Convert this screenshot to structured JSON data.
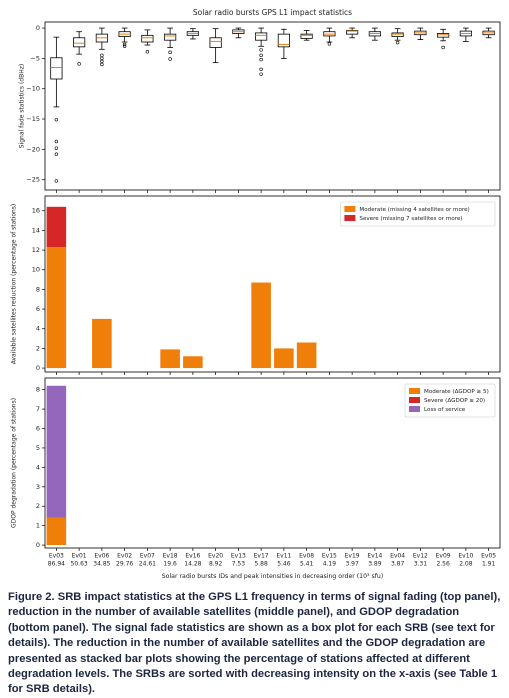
{
  "chart_data": [
    {
      "type": "box",
      "title": "Solar radio bursts GPS L1 impact statistics",
      "ylabel": "Signal fade statistics (dBHz)",
      "ylim": [
        -26.7,
        1
      ],
      "yticks": [
        0,
        {
          "value": -5,
          "label": "−5"
        },
        {
          "value": -10,
          "label": "−10"
        },
        {
          "value": -15,
          "label": "−15"
        },
        {
          "value": -20,
          "label": "−20"
        },
        {
          "value": -25,
          "label": "−25"
        }
      ],
      "color": "#000000",
      "median_color": "#f07f0a",
      "whisker_high": [
        -1.5,
        -0.6,
        0,
        0,
        -0.3,
        0,
        -0.1,
        -0.1,
        0,
        0,
        -0.2,
        -0.4,
        0,
        0,
        0,
        -0.1,
        0,
        -0.2,
        0,
        0
      ],
      "q3": [
        -4.9,
        -1.6,
        -1,
        -0.6,
        -1.2,
        -1,
        -0.6,
        -1.6,
        -0.3,
        -0.8,
        -1,
        -1,
        -0.6,
        -0.4,
        -0.6,
        -0.8,
        -0.5,
        -0.9,
        -0.5,
        -0.5
      ],
      "median": [
        -6.5,
        -2.5,
        -1.6,
        -1,
        -1.6,
        -1.3,
        -0.9,
        -2.2,
        -0.6,
        -1.2,
        -2.7,
        -1.2,
        -1,
        -0.5,
        -0.9,
        -1,
        -0.8,
        -1.1,
        -0.9,
        -0.8
      ],
      "q1": [
        -8.4,
        -3.1,
        -2.3,
        -1.4,
        -2.3,
        -2,
        -1.2,
        -3.2,
        -0.9,
        -2,
        -3.1,
        -1.7,
        -1.3,
        -1,
        -1.3,
        -1.4,
        -1.1,
        -1.5,
        -1.3,
        -1.1
      ],
      "whisker_low": [
        -13,
        -4.3,
        -3.5,
        -2.3,
        -2.8,
        -3.2,
        -1.8,
        -5.7,
        -1.6,
        -3,
        -5,
        -2,
        -2.3,
        -1.6,
        -2,
        -2,
        -1.9,
        -2.1,
        -2.2,
        -1.6
      ],
      "fliers": [
        [
          -15.1,
          -18.7,
          -19.8,
          -20.8,
          -25.2
        ],
        [
          -5.9
        ],
        [
          -4.5,
          -5,
          -5.5,
          -6
        ],
        [
          -2.7,
          -3
        ],
        [
          -3.9
        ],
        [
          -4,
          -5.1
        ],
        [],
        [],
        [],
        [
          -3.6,
          -4.5,
          -5.2,
          -6.8,
          -7.6
        ],
        [],
        [],
        [
          -2.6
        ],
        [],
        [],
        [
          -2.4
        ],
        [],
        [
          -3.2
        ],
        [],
        []
      ]
    },
    {
      "type": "bar",
      "stacked": true,
      "ylabel": "Available satellites reduction (percentage of stations)",
      "ylim": [
        -0.4,
        17.5
      ],
      "yticks": [
        0,
        2,
        4,
        6,
        8,
        10,
        12,
        14,
        16
      ],
      "legend": "upper right",
      "series": [
        {
          "name": "Moderate (missing 4 satellites or more)",
          "color": "#f07f0a",
          "values": [
            12.3,
            0,
            5.0,
            0,
            0,
            1.9,
            1.2,
            0,
            0,
            8.7,
            2.0,
            2.6,
            0,
            0,
            0,
            0,
            0,
            0,
            0,
            0
          ]
        },
        {
          "name": "Severe (missing 7 satellites or more)",
          "color": "#d62728",
          "values": [
            4.1,
            0,
            0,
            0,
            0,
            0,
            0,
            0,
            0,
            0,
            0,
            0,
            0,
            0,
            0,
            0,
            0,
            0,
            0,
            0
          ]
        }
      ]
    },
    {
      "type": "bar",
      "stacked": true,
      "ylabel": "GDOP degradation (percentage of stations)",
      "ylim": [
        -0.15,
        8.6
      ],
      "yticks": [
        0,
        1,
        2,
        3,
        4,
        5,
        6,
        7,
        8
      ],
      "legend": "upper right",
      "xlabel": "Solar radio bursts IDs and peak intensities in decreasing order (10³ sfu)",
      "categories": [
        "Ev03",
        "Ev01",
        "Ev06",
        "Ev02",
        "Ev07",
        "Ev18",
        "Ev16",
        "Ev20",
        "Ev13",
        "Ev17",
        "Ev11",
        "Ev08",
        "Ev15",
        "Ev19",
        "Ev14",
        "Ev04",
        "Ev12",
        "Ev09",
        "Ev10",
        "Ev05"
      ],
      "intensities": [
        86.94,
        50.63,
        34.85,
        29.76,
        24.61,
        19.6,
        14.28,
        8.92,
        7.53,
        5.88,
        5.46,
        5.41,
        4.19,
        3.97,
        3.89,
        3.87,
        3.31,
        2.56,
        2.08,
        1.91
      ],
      "series": [
        {
          "name": "Moderate (ΔGDOP ≥ 5)",
          "color": "#f07f0a",
          "values": [
            1.4,
            0,
            0,
            0,
            0,
            0,
            0,
            0,
            0,
            0,
            0,
            0,
            0,
            0,
            0,
            0,
            0,
            0,
            0,
            0
          ]
        },
        {
          "name": "Severe (ΔGDOP ≥ 20)",
          "color": "#d62728",
          "values": [
            0,
            0,
            0,
            0,
            0,
            0,
            0,
            0,
            0,
            0,
            0,
            0,
            0,
            0,
            0,
            0,
            0,
            0,
            0,
            0
          ]
        },
        {
          "name": "Loss of service",
          "color": "#9467bd",
          "values": [
            6.8,
            0,
            0,
            0,
            0,
            0,
            0,
            0,
            0,
            0,
            0,
            0,
            0,
            0,
            0,
            0,
            0,
            0,
            0,
            0
          ]
        }
      ]
    }
  ],
  "caption": "Figure 2. SRB impact statistics at the GPS L1 frequency in terms of signal fading (top panel), reduction in the number of available satellites (middle panel), and GDOP degradation (bottom panel). The signal fade statistics are shown as a box plot for each SRB (see text for details). The reduction in the number of available satellites and the GDOP degradation are presented as stacked bar plots showing the percentage of stations affected at different degradation levels. The SRBs are sorted with decreasing intensity on the x-axis (see Table 1 for SRB details)."
}
